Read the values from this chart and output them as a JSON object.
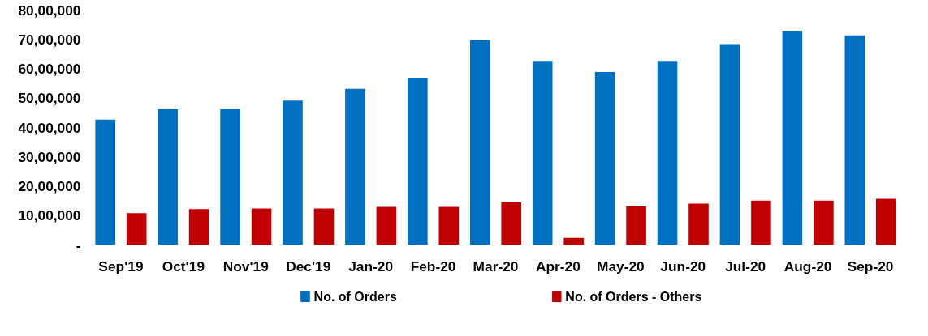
{
  "chart_data": {
    "type": "bar",
    "categories": [
      "Sep'19",
      "Oct'19",
      "Nov'19",
      "Dec'19",
      "Jan-20",
      "Feb-20",
      "Mar-20",
      "Apr-20",
      "May-20",
      "Jun-20",
      "Jul-20",
      "Aug-20",
      "Sep-20"
    ],
    "series": [
      {
        "name": "No. of Orders",
        "color": "#0070c0",
        "values": [
          4270000,
          4620000,
          4620000,
          4920000,
          5320000,
          5700000,
          6970000,
          6270000,
          5890000,
          6270000,
          6840000,
          7300000,
          7140000
        ]
      },
      {
        "name": "No. of Orders - Others",
        "color": "#c00000",
        "values": [
          1080000,
          1220000,
          1240000,
          1240000,
          1300000,
          1300000,
          1460000,
          240000,
          1320000,
          1410000,
          1510000,
          1510000,
          1570000
        ]
      }
    ],
    "ylim": [
      0,
      8000000
    ],
    "yticks": [
      {
        "value": 0,
        "label": "-"
      },
      {
        "value": 1000000,
        "label": "10,00,000"
      },
      {
        "value": 2000000,
        "label": "20,00,000"
      },
      {
        "value": 3000000,
        "label": "30,00,000"
      },
      {
        "value": 4000000,
        "label": "40,00,000"
      },
      {
        "value": 5000000,
        "label": "50,00,000"
      },
      {
        "value": 6000000,
        "label": "60,00,000"
      },
      {
        "value": 7000000,
        "label": "70,00,000"
      },
      {
        "value": 8000000,
        "label": "80,00,000"
      }
    ],
    "grid": false,
    "legend": "bottom"
  }
}
